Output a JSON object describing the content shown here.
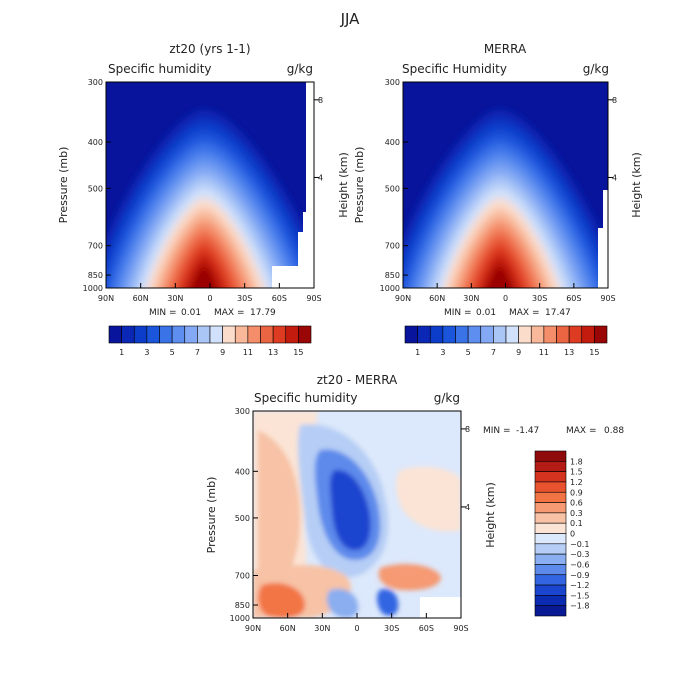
{
  "figure": {
    "title": "JJA"
  },
  "chart_data": [
    {
      "type": "heatmap",
      "panel_title": "zt20 (yrs 1-1)",
      "field_label": "Specific humidity",
      "units": "g/kg",
      "ylabel": "Pressure (mb)",
      "y2label": "Height (km)",
      "x_ticks": [
        "90N",
        "60N",
        "30N",
        "0",
        "30S",
        "60S",
        "90S"
      ],
      "y_ticks": [
        "300",
        "400",
        "500",
        "700",
        "850",
        "1000"
      ],
      "y2_ticks": [
        "8",
        "4"
      ],
      "min_text": "MIN =",
      "min_value": "0.01",
      "max_text": "MAX =",
      "max_value": "17.79",
      "colorbar_labels": [
        "1",
        "3",
        "5",
        "7",
        "9",
        "11",
        "13",
        "15"
      ],
      "colors": [
        "#08149b",
        "#0b27b5",
        "#0b3cca",
        "#1a55dc",
        "#3a72e8",
        "#5d8ef0",
        "#83a9f4",
        "#aac6f7",
        "#d1e1fb",
        "#fbdccb",
        "#f8b899",
        "#f48e6a",
        "#ec6543",
        "#de3c22",
        "#c41b0f",
        "#9a0606"
      ]
    },
    {
      "type": "heatmap",
      "panel_title": "MERRA",
      "field_label": "Specific Humidity",
      "units": "g/kg",
      "ylabel": "Pressure (mb)",
      "y2label": "Height (km)",
      "x_ticks": [
        "90N",
        "60N",
        "30N",
        "0",
        "30S",
        "60S",
        "90S"
      ],
      "y_ticks": [
        "300",
        "400",
        "500",
        "700",
        "850",
        "1000"
      ],
      "y2_ticks": [
        "8",
        "4"
      ],
      "min_text": "MIN =",
      "min_value": "0.01",
      "max_text": "MAX =",
      "max_value": "17.47",
      "colorbar_labels": [
        "1",
        "3",
        "5",
        "7",
        "9",
        "11",
        "13",
        "15"
      ],
      "colors": [
        "#08149b",
        "#0b27b5",
        "#0b3cca",
        "#1a55dc",
        "#3a72e8",
        "#5d8ef0",
        "#83a9f4",
        "#aac6f7",
        "#d1e1fb",
        "#fbdccb",
        "#f8b899",
        "#f48e6a",
        "#ec6543",
        "#de3c22",
        "#c41b0f",
        "#9a0606"
      ]
    },
    {
      "type": "heatmap",
      "panel_title": "zt20 - MERRA",
      "field_label": "Specific humidity",
      "units": "g/kg",
      "ylabel": "Pressure (mb)",
      "y2label": "Height (km)",
      "x_ticks": [
        "90N",
        "60N",
        "30N",
        "0",
        "30S",
        "60S",
        "90S"
      ],
      "y_ticks": [
        "300",
        "400",
        "500",
        "700",
        "850",
        "1000"
      ],
      "y2_ticks": [
        "8",
        "4"
      ],
      "min_text": "MIN =",
      "min_value": "-1.47",
      "max_text": "MAX =",
      "max_value": "0.88",
      "colorbar_labels": [
        "1.8",
        "1.5",
        "1.2",
        "0.9",
        "0.6",
        "0.3",
        "0.1",
        "0",
        "−0.1",
        "−0.3",
        "−0.6",
        "−0.9",
        "−1.2",
        "−1.5",
        "−1.8"
      ],
      "colors": [
        "#8f0a0a",
        "#b41b14",
        "#d4331f",
        "#e9522f",
        "#f27445",
        "#f59a72",
        "#f7c2a5",
        "#fbe4d6",
        "#dce8fb",
        "#b6cef5",
        "#8aaef0",
        "#5d8aeb",
        "#3365e2",
        "#1a45cf",
        "#0c2bb3",
        "#081b95"
      ]
    }
  ]
}
